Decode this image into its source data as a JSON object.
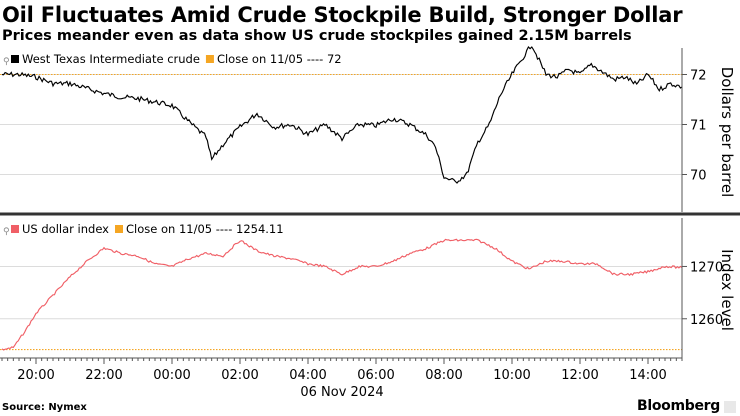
{
  "title": "Oil Fluctuates Amid Crude Stockpile Build, Stronger Dollar",
  "subtitle": "Prices meander even as data show US crude stockpiles gained 2.15M barrels",
  "source": "Source: Nymex",
  "logo": "Bloomberg",
  "colors": {
    "oil": "#000000",
    "dxy": "#f05f66",
    "ref_line": "#f5a623",
    "axis": "#555555"
  },
  "chart_data": [
    {
      "type": "line",
      "legend": [
        "West Texas Intermediate crude",
        "Close on 11/05 ---- 72"
      ],
      "ylabel": "Dollars per barrel",
      "yticks": [
        70,
        71,
        72
      ],
      "ylim": [
        69.25,
        72.45
      ],
      "reference_line": 72,
      "series": [
        {
          "name": "West Texas Intermediate crude",
          "x": [
            "19:00",
            "19:30",
            "20:00",
            "20:30",
            "21:00",
            "21:30",
            "22:00",
            "22:30",
            "23:00",
            "23:30",
            "00:00",
            "00:30",
            "01:00",
            "01:10",
            "01:30",
            "02:00",
            "02:30",
            "03:00",
            "03:30",
            "04:00",
            "04:30",
            "05:00",
            "05:30",
            "06:00",
            "06:30",
            "07:00",
            "07:30",
            "07:45",
            "08:00",
            "08:20",
            "08:40",
            "09:00",
            "09:20",
            "09:40",
            "10:00",
            "10:20",
            "10:35",
            "10:45",
            "11:00",
            "11:20",
            "11:40",
            "12:00",
            "12:20",
            "12:40",
            "13:00",
            "13:20",
            "13:40",
            "14:00",
            "14:20",
            "14:40",
            "15:00"
          ],
          "values": [
            72.0,
            72.0,
            71.95,
            71.82,
            71.82,
            71.72,
            71.62,
            71.55,
            71.52,
            71.45,
            71.38,
            71.05,
            70.75,
            70.3,
            70.6,
            70.95,
            71.22,
            70.95,
            71.0,
            70.8,
            71.0,
            70.72,
            71.0,
            70.98,
            71.12,
            71.0,
            70.78,
            70.55,
            69.95,
            69.85,
            70.0,
            70.65,
            71.0,
            71.6,
            72.0,
            72.35,
            72.6,
            72.35,
            72.0,
            71.95,
            72.1,
            72.0,
            72.2,
            72.05,
            71.9,
            71.95,
            71.8,
            72.0,
            71.7,
            71.82,
            71.75
          ]
        }
      ]
    },
    {
      "type": "line",
      "legend": [
        "US dollar index",
        "Close on 11/05 ---- 1254.11"
      ],
      "ylabel": "Index level",
      "yticks": [
        1260,
        1270
      ],
      "ylim": [
        1252.5,
        1278.5
      ],
      "reference_line": 1254.11,
      "xticks": [
        "20:00",
        "22:00",
        "00:00",
        "02:00",
        "04:00",
        "06:00",
        "08:00",
        "10:00",
        "12:00",
        "14:00"
      ],
      "xdate": "06 Nov 2024",
      "series": [
        {
          "name": "US dollar index",
          "x": [
            "19:00",
            "19:20",
            "19:40",
            "20:00",
            "20:30",
            "21:00",
            "21:30",
            "22:00",
            "22:30",
            "23:00",
            "23:30",
            "00:00",
            "00:30",
            "01:00",
            "01:30",
            "02:00",
            "02:30",
            "03:00",
            "03:30",
            "04:00",
            "04:30",
            "05:00",
            "05:30",
            "06:00",
            "06:30",
            "07:00",
            "07:30",
            "08:00",
            "08:30",
            "09:00",
            "09:30",
            "10:00",
            "10:30",
            "11:00",
            "11:30",
            "12:00",
            "12:30",
            "13:00",
            "13:30",
            "14:00",
            "14:30",
            "15:00"
          ],
          "values": [
            1254.1,
            1254.5,
            1257.5,
            1261.0,
            1264.5,
            1268.0,
            1271.0,
            1273.5,
            1272.5,
            1272.0,
            1270.5,
            1270.0,
            1271.5,
            1272.5,
            1272.0,
            1275.0,
            1273.0,
            1272.0,
            1271.5,
            1270.5,
            1270.0,
            1268.5,
            1270.0,
            1270.0,
            1271.0,
            1272.5,
            1273.5,
            1275.0,
            1275.0,
            1275.0,
            1273.5,
            1271.0,
            1269.5,
            1271.0,
            1271.0,
            1270.5,
            1270.5,
            1268.5,
            1268.5,
            1269.0,
            1270.0,
            1269.8
          ]
        }
      ]
    }
  ]
}
